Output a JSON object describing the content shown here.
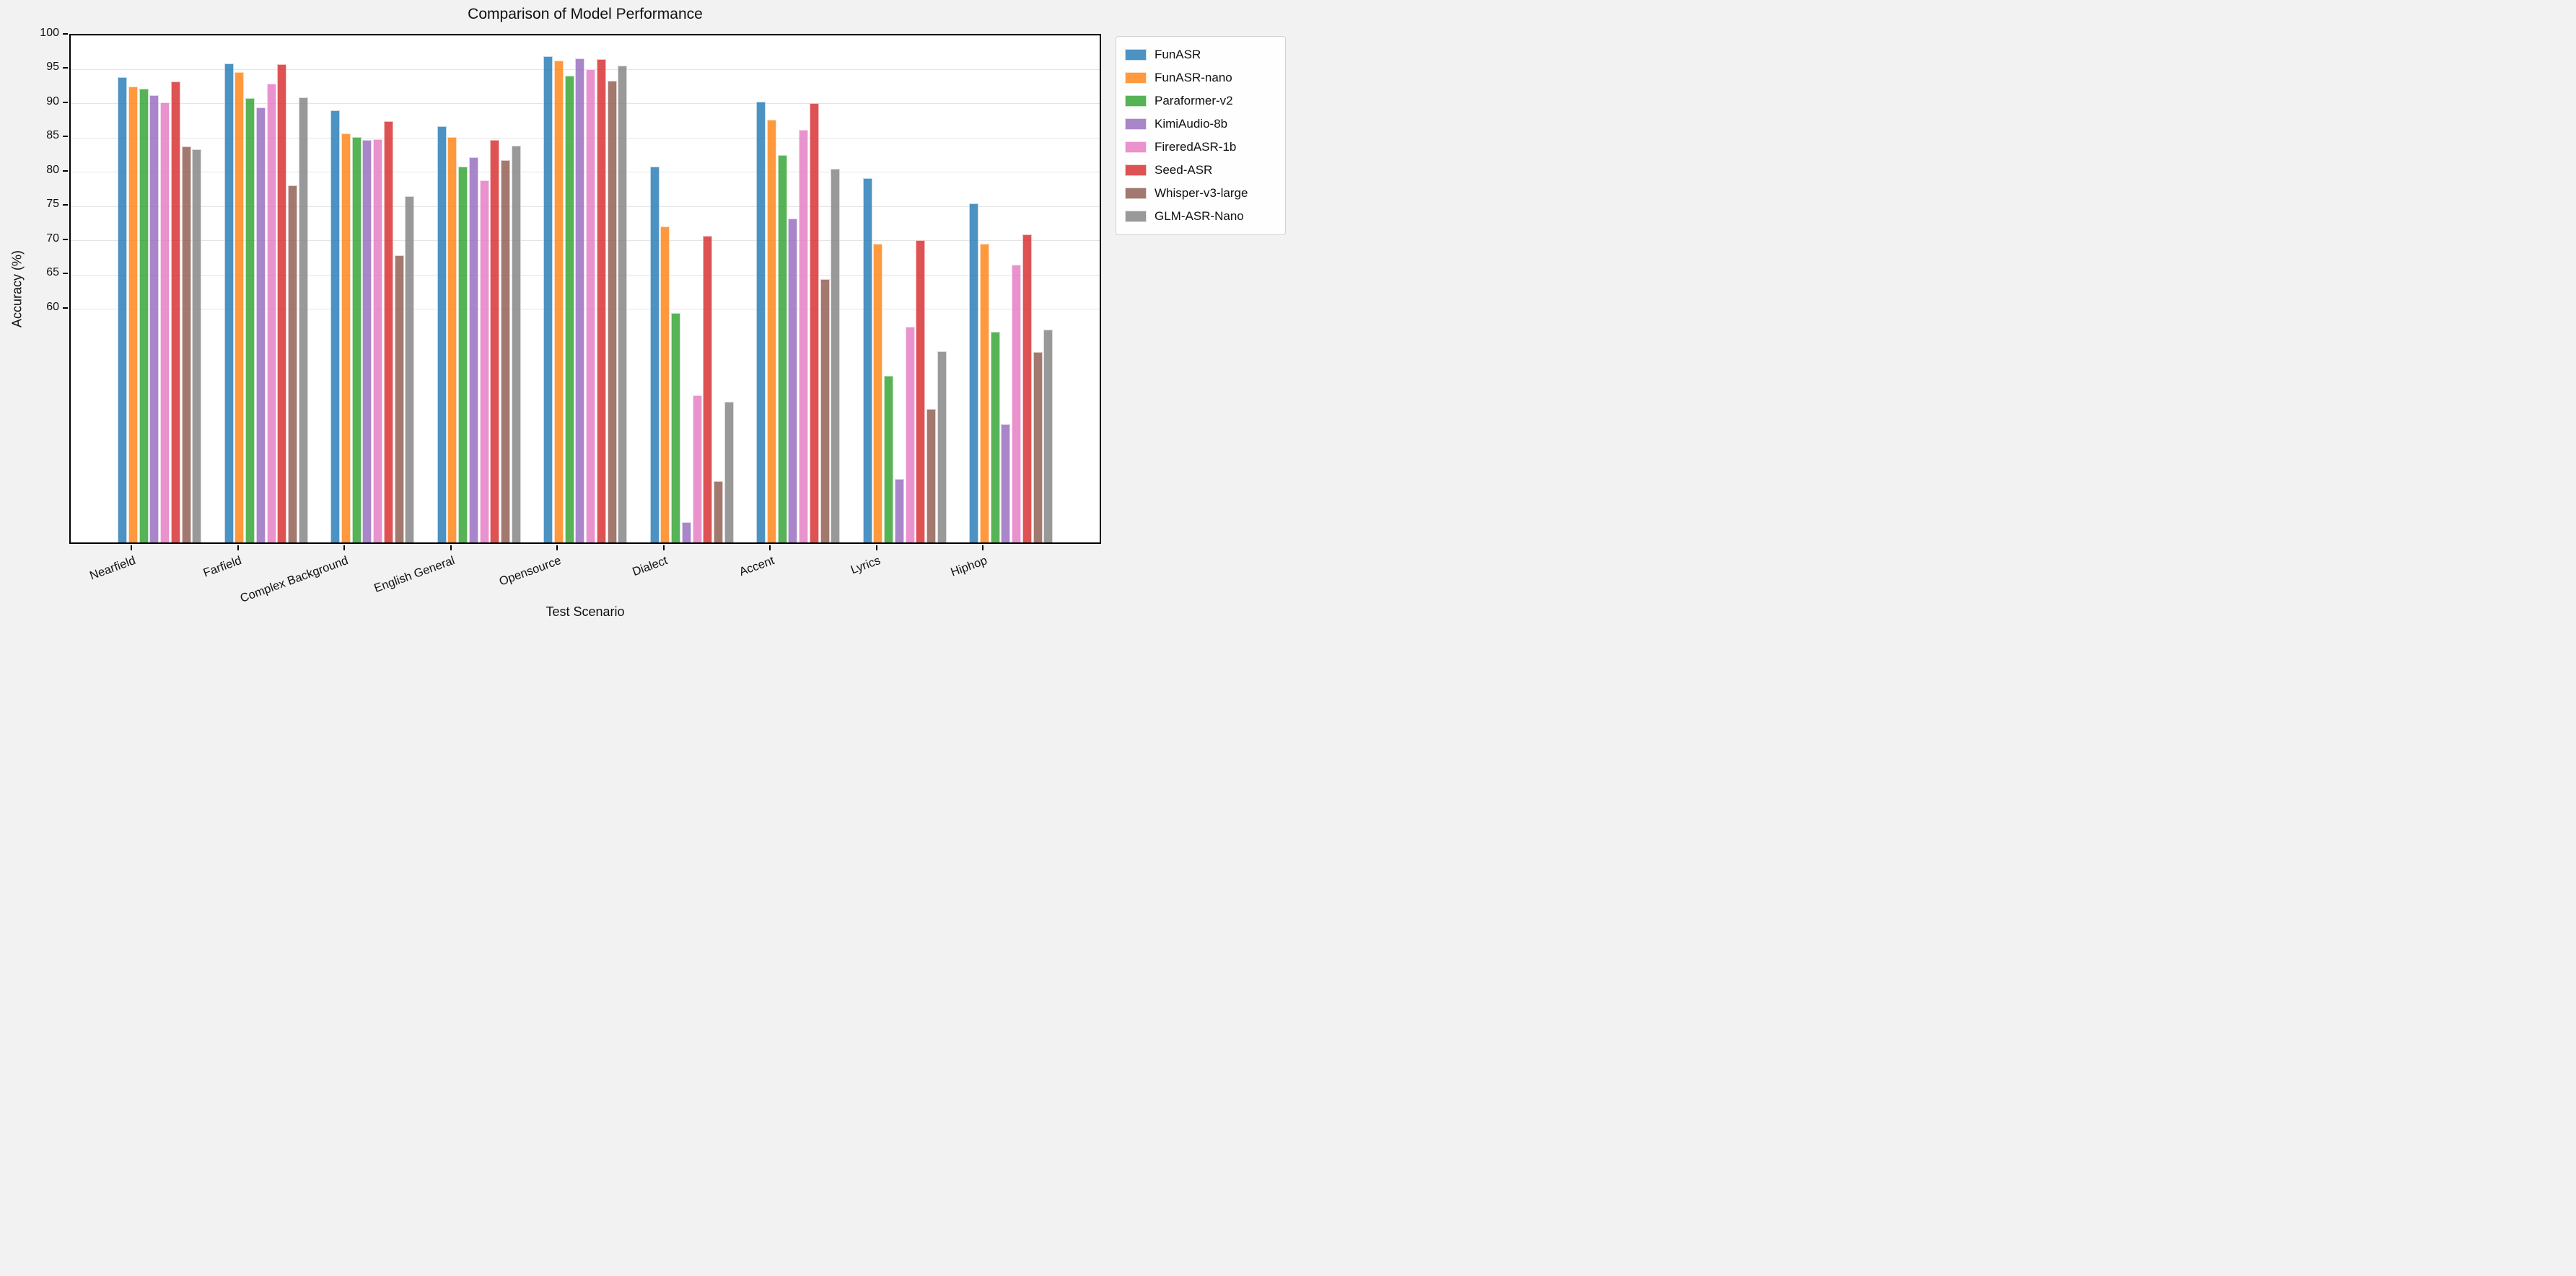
{
  "title": "Comparison of Model Performance",
  "x_axis_label": "Test Scenario",
  "y_axis_label": "Accuracy (%)",
  "chart_data": {
    "type": "bar",
    "title": "Comparison of Model Performance",
    "xlabel": "Test Scenario",
    "ylabel": "Accuracy (%)",
    "ylim": [
      25.5,
      100
    ],
    "y_ticks": [
      60,
      65,
      70,
      75,
      80,
      85,
      90,
      95,
      100
    ],
    "grid": "horizontal, light gray, only at labeled ticks 60-100",
    "legend_position": "outside upper right",
    "categories": [
      "Nearfield",
      "Farfield",
      "Complex Background",
      "English General",
      "Opensource",
      "Dialect",
      "Accent",
      "Lyrics",
      "Hiphop"
    ],
    "series": [
      {
        "name": "FunASR",
        "color": "rgba(31,119,180,0.8)",
        "values": [
          93.5,
          95.5,
          88.6,
          86.3,
          96.5,
          80.4,
          89.9,
          78.7,
          75.0
        ]
      },
      {
        "name": "FunASR-nano",
        "color": "rgba(255,127,14,0.8)",
        "values": [
          92.1,
          94.2,
          85.3,
          84.7,
          95.9,
          71.7,
          87.2,
          69.1,
          69.1
        ]
      },
      {
        "name": "Paraformer-v2",
        "color": "rgba(44,160,44,0.8)",
        "values": [
          91.8,
          90.4,
          84.7,
          80.4,
          93.7,
          59.0,
          82.1,
          49.8,
          56.3
        ]
      },
      {
        "name": "KimiAudio-8b",
        "color": "rgba(148,103,189,0.8)",
        "values": [
          90.8,
          89.0,
          84.3,
          81.8,
          96.2,
          28.5,
          72.8,
          34.8,
          42.8
        ]
      },
      {
        "name": "FireredASR-1b",
        "color": "rgba(227,119,194,0.8)",
        "values": [
          89.8,
          92.5,
          84.4,
          78.4,
          94.6,
          47.0,
          85.8,
          57.0,
          66.1
        ]
      },
      {
        "name": "Seed-ASR",
        "color": "rgba(214,39,40,0.8)",
        "values": [
          92.8,
          95.4,
          87.0,
          84.3,
          96.1,
          70.3,
          89.7,
          69.7,
          70.5
        ]
      },
      {
        "name": "Whisper-v3-large",
        "color": "rgba(140,86,75,0.8)",
        "values": [
          83.3,
          77.7,
          67.4,
          81.4,
          92.9,
          34.5,
          64.0,
          45.0,
          53.3
        ]
      },
      {
        "name": "GLM-ASR-Nano",
        "color": "rgba(127,127,127,0.8)",
        "values": [
          82.9,
          90.5,
          76.1,
          83.5,
          95.2,
          46.0,
          80.1,
          53.4,
          56.6
        ]
      }
    ]
  },
  "style": {
    "figure_background": "#f2f2f2",
    "plot_background": "#ffffff",
    "spine_color": "#000000",
    "gridline_color": "#e4e4e4"
  }
}
